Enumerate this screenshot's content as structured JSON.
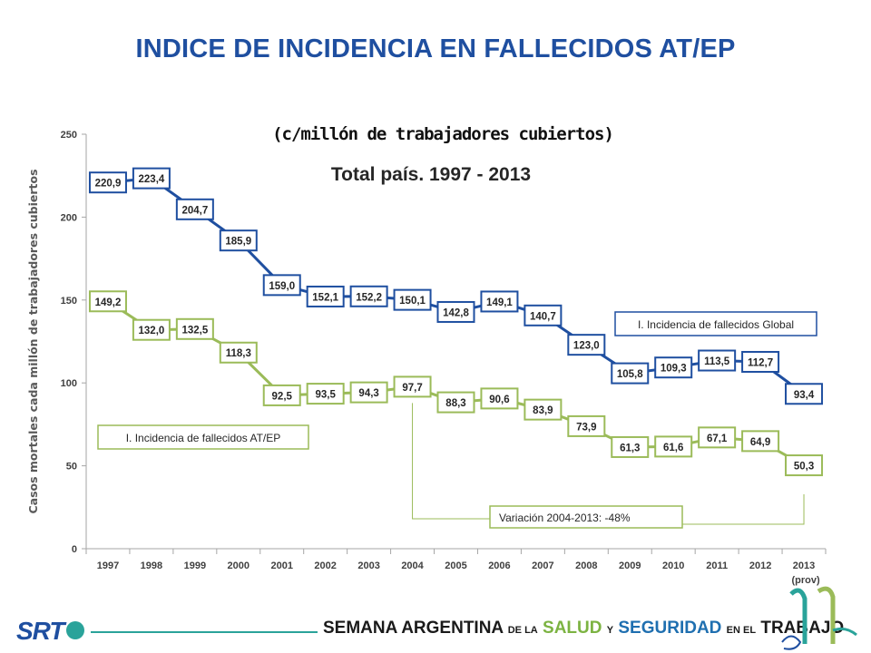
{
  "title": "INDICE DE INCIDENCIA EN FALLECIDOS AT/EP",
  "chart_data": {
    "type": "line",
    "subtitle": "(c/millón de trabajadores cubiertos)",
    "subtitle2": "Total país. 1997 - 2013",
    "ylabel": "Casos mortales cada millón de trabajadores cubiertos",
    "xlabel": "",
    "ylim": [
      0,
      250
    ],
    "yticks": [
      "0",
      "50",
      "100",
      "150",
      "200",
      "250"
    ],
    "ytick_values": [
      0,
      50,
      100,
      150,
      200,
      250
    ],
    "categories": [
      "1997",
      "1998",
      "1999",
      "2000",
      "2001",
      "2002",
      "2003",
      "2004",
      "2005",
      "2006",
      "2007",
      "2008",
      "2009",
      "2010",
      "2011",
      "2012",
      "2013"
    ],
    "last_category_note": "(prov)",
    "grid": false,
    "series": [
      {
        "name": "I. Incidencia de fallecidos Global",
        "color": "#1f4fa0",
        "values": [
          220.9,
          223.4,
          204.7,
          185.9,
          159.0,
          152.1,
          152.2,
          150.1,
          142.8,
          149.1,
          140.7,
          123.0,
          105.8,
          109.3,
          113.5,
          112.7,
          93.4
        ],
        "labels": [
          "220,9",
          "223,4",
          "204,7",
          "185,9",
          "159,0",
          "152,1",
          "152,2",
          "150,1",
          "142,8",
          "149,1",
          "140,7",
          "123,0",
          "105,8",
          "109,3",
          "113,5",
          "112,7",
          "93,4"
        ]
      },
      {
        "name": "I. Incidencia de fallecidos AT/EP",
        "color": "#9bbb59",
        "values": [
          149.2,
          132.0,
          132.5,
          118.3,
          92.5,
          93.5,
          94.3,
          97.7,
          88.3,
          90.6,
          83.9,
          73.9,
          61.3,
          61.6,
          67.1,
          64.9,
          50.3
        ],
        "labels": [
          "149,2",
          "132,0",
          "132,5",
          "118,3",
          "92,5",
          "93,5",
          "94,3",
          "97,7",
          "88,3",
          "90,6",
          "83,9",
          "73,9",
          "61,3",
          "61,6",
          "67,1",
          "64,9",
          "50,3"
        ]
      }
    ],
    "annotation": "Variación 2004-2013: -48%"
  },
  "footer": {
    "logo": "SRT",
    "t1": "SEMANA ARGENTINA",
    "t2": "DE LA",
    "t3": "SALUD",
    "t4": "Y",
    "t5": "SEGURIDAD",
    "t6": "EN EL",
    "t7": "TRABAJO"
  }
}
